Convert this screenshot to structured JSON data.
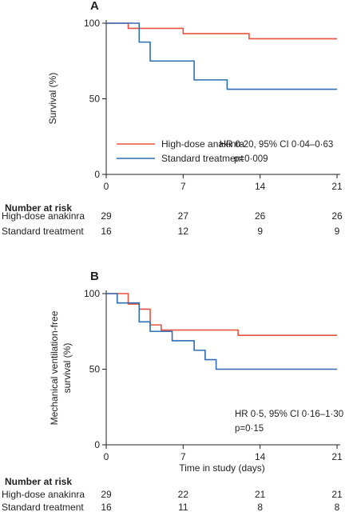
{
  "chart_data": [
    {
      "type": "line",
      "panel_label": "A",
      "ylabel": "Survival (%)",
      "xlabel": "",
      "ylim": [
        0,
        100
      ],
      "xlim": [
        0,
        21
      ],
      "yticks": [
        0,
        50,
        100
      ],
      "xticks": [
        0,
        7,
        14,
        21
      ],
      "series": [
        {
          "name": "High-dose anakinra",
          "color": "#e8523f",
          "steps": [
            [
              0,
              100
            ],
            [
              2,
              96.6
            ],
            [
              7,
              93.1
            ],
            [
              13,
              89.7
            ],
            [
              21,
              89.7
            ]
          ]
        },
        {
          "name": "Standard treatment",
          "color": "#2f6db5",
          "steps": [
            [
              0,
              100
            ],
            [
              3,
              87.5
            ],
            [
              4,
              75
            ],
            [
              8,
              62.5
            ],
            [
              11,
              56.3
            ],
            [
              21,
              56.3
            ]
          ]
        }
      ],
      "stats": [
        "HR 0·20, 95% CI 0·04–0·63",
        "p=0·009"
      ],
      "risk_table": {
        "title": "Number at risk",
        "rows": [
          {
            "label": "High-dose anakinra",
            "values": [
              "29",
              "27",
              "26",
              "26"
            ]
          },
          {
            "label": "Standard treatment",
            "values": [
              "16",
              "12",
              "9",
              "9"
            ]
          }
        ]
      }
    },
    {
      "type": "line",
      "panel_label": "B",
      "ylabel_lines": [
        "Mechanical ventilation-free",
        "survival (%)"
      ],
      "xlabel": "Time in study (days)",
      "ylim": [
        0,
        100
      ],
      "xlim": [
        0,
        21
      ],
      "yticks": [
        0,
        50,
        100
      ],
      "xticks": [
        0,
        7,
        14,
        21
      ],
      "series": [
        {
          "name": "High-dose anakinra",
          "color": "#e8523f",
          "steps": [
            [
              0,
              100
            ],
            [
              2,
              93.1
            ],
            [
              3,
              89.7
            ],
            [
              4,
              79.3
            ],
            [
              5,
              75.9
            ],
            [
              6,
              75.9
            ],
            [
              12,
              72.4
            ],
            [
              21,
              72.4
            ]
          ]
        },
        {
          "name": "Standard treatment",
          "color": "#2f6db5",
          "steps": [
            [
              0,
              100
            ],
            [
              1,
              93.8
            ],
            [
              3,
              81.3
            ],
            [
              4,
              75
            ],
            [
              6,
              68.8
            ],
            [
              8,
              62.5
            ],
            [
              9,
              56.3
            ],
            [
              10,
              50
            ],
            [
              21,
              50
            ]
          ]
        }
      ],
      "stats": [
        "HR 0·5, 95% CI 0·16–1·30",
        "p=0·15"
      ],
      "risk_table": {
        "title": "Number at risk",
        "rows": [
          {
            "label": "High-dose anakinra",
            "values": [
              "29",
              "22",
              "21",
              "21"
            ]
          },
          {
            "label": "Standard treatment",
            "values": [
              "16",
              "11",
              "8",
              "8"
            ]
          }
        ]
      }
    }
  ]
}
